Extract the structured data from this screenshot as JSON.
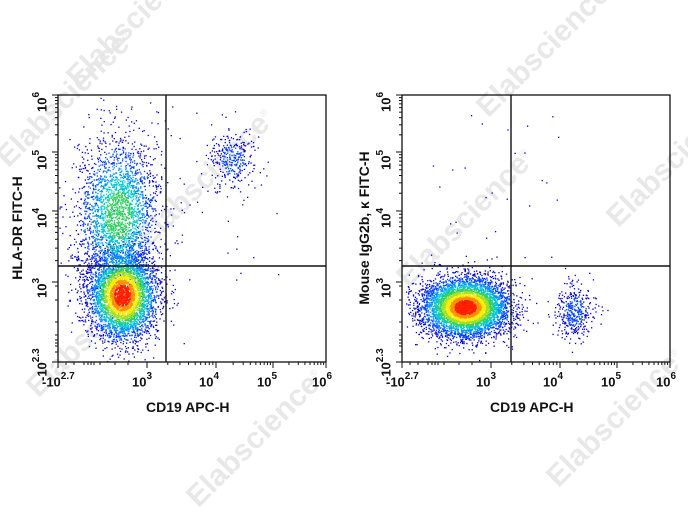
{
  "watermark": {
    "text": "Elabscience",
    "mark": "®"
  },
  "chart_data": [
    {
      "type": "scatter",
      "subtype": "flow-cytometry-density-dot-plot",
      "title": "",
      "xlabel": "CD19 APC-H",
      "ylabel": "HLA-DR FITC-H",
      "x_scale": "biexponential",
      "y_scale": "biexponential",
      "x_ticks": [
        {
          "base": "-10",
          "exp": "2.7"
        },
        {
          "base": "10",
          "exp": "3"
        },
        {
          "base": "10",
          "exp": "4"
        },
        {
          "base": "10",
          "exp": "5"
        },
        {
          "base": "10",
          "exp": "6"
        }
      ],
      "y_ticks": [
        {
          "base": "-10",
          "exp": "2.3"
        },
        {
          "base": "10",
          "exp": "3"
        },
        {
          "base": "10",
          "exp": "4"
        },
        {
          "base": "10",
          "exp": "5"
        },
        {
          "base": "10",
          "exp": "6"
        }
      ],
      "xlim": [
        "-10^2.7",
        "10^6"
      ],
      "ylim": [
        "-10^2.3",
        "10^6"
      ],
      "gates": {
        "x_threshold": 2000,
        "y_threshold": 1700
      },
      "populations": [
        {
          "name": "CD19- HLA-DR low (main)",
          "center_x": 500,
          "center_y": 700,
          "density": "high",
          "peak_color": "#ff0000"
        },
        {
          "name": "CD19- HLA-DR+ (tail)",
          "center_x": 450,
          "center_y": 5000,
          "density": "medium",
          "peak_color": "#33cc66"
        },
        {
          "name": "CD19+ HLA-DR+ (B cells)",
          "center_x": 20000,
          "center_y": 90000,
          "density": "low",
          "peak_color": "#0033cc"
        }
      ],
      "grid": false,
      "legend": "none",
      "color_scale": [
        "#0000cc",
        "#0080ff",
        "#00cccc",
        "#33cc33",
        "#ffff00",
        "#ff8000",
        "#ff0000"
      ]
    },
    {
      "type": "scatter",
      "subtype": "flow-cytometry-density-dot-plot",
      "title": "",
      "xlabel": "CD19 APC-H",
      "ylabel": "Mouse IgG2b, κ FITC-H",
      "x_scale": "biexponential",
      "y_scale": "biexponential",
      "x_ticks": [
        {
          "base": "-10",
          "exp": "2.7"
        },
        {
          "base": "10",
          "exp": "3"
        },
        {
          "base": "10",
          "exp": "4"
        },
        {
          "base": "10",
          "exp": "5"
        },
        {
          "base": "10",
          "exp": "6"
        }
      ],
      "y_ticks": [
        {
          "base": "-10",
          "exp": "2.3"
        },
        {
          "base": "10",
          "exp": "3"
        },
        {
          "base": "10",
          "exp": "4"
        },
        {
          "base": "10",
          "exp": "5"
        },
        {
          "base": "10",
          "exp": "6"
        }
      ],
      "xlim": [
        "-10^2.7",
        "10^6"
      ],
      "ylim": [
        "-10^2.3",
        "10^6"
      ],
      "gates": {
        "x_threshold": 2000,
        "y_threshold": 1700
      },
      "populations": [
        {
          "name": "CD19- isotype (main)",
          "center_x": 450,
          "center_y": 550,
          "density": "high",
          "peak_color": "#ff0000"
        },
        {
          "name": "CD19+ isotype",
          "center_x": 20000,
          "center_y": 500,
          "density": "low",
          "peak_color": "#0033cc"
        }
      ],
      "grid": false,
      "legend": "none",
      "color_scale": [
        "#0000cc",
        "#0080ff",
        "#00cccc",
        "#33cc33",
        "#ffff00",
        "#ff8000",
        "#ff0000"
      ]
    }
  ]
}
